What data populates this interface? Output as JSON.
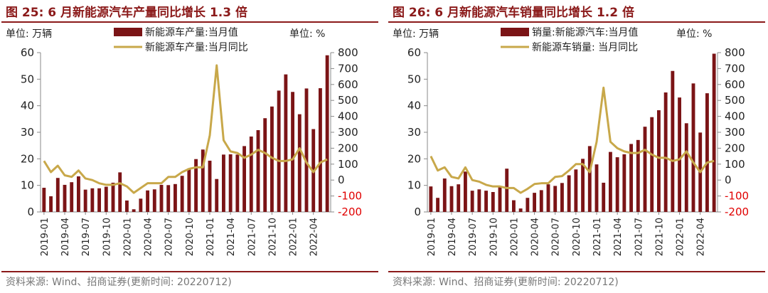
{
  "colors": {
    "accent": "#8B1A1A",
    "bar": "#7B1416",
    "line": "#C8A84A",
    "negative_tick": "#e00000"
  },
  "charts": [
    {
      "title": "图 25:  6 月新能源汽车产量同比增长 1.3 倍",
      "source": "资料来源: Wind、招商证券(更新时间: 20220712)",
      "left_unit": "单位:  万辆",
      "right_unit": "单位:  %"
    },
    {
      "title": "图 26:  6 月新能源汽车销量同比增长 1.2 倍",
      "source": "资料来源: Wind、招商证券(更新时间: 20220712)",
      "left_unit": "单位:  万辆",
      "right_unit": "单位:  %"
    }
  ],
  "chart_data": [
    {
      "type": "bar",
      "title": "图 25:  6 月新能源汽车产量同比增长 1.3 倍",
      "x": [
        "2019-01",
        "2019-02",
        "2019-03",
        "2019-04",
        "2019-05",
        "2019-06",
        "2019-07",
        "2019-08",
        "2019-09",
        "2019-10",
        "2019-11",
        "2019-12",
        "2020-01",
        "2020-02",
        "2020-03",
        "2020-04",
        "2020-05",
        "2020-06",
        "2020-07",
        "2020-08",
        "2020-09",
        "2020-10",
        "2020-11",
        "2020-12",
        "2021-01",
        "2021-02",
        "2021-03",
        "2021-04",
        "2021-05",
        "2021-06",
        "2021-07",
        "2021-08",
        "2021-09",
        "2021-10",
        "2021-11",
        "2021-12",
        "2022-01",
        "2022-02",
        "2022-03",
        "2022-04",
        "2022-05",
        "2022-06"
      ],
      "x_tick_labels": [
        "2019-01",
        "2019-04",
        "2019-07",
        "2019-10",
        "2020-01",
        "2020-04",
        "2020-07",
        "2020-10",
        "2021-01",
        "2021-04",
        "2021-07",
        "2021-10",
        "2022-01",
        "2022-04"
      ],
      "left_axis": {
        "range": [
          0,
          60
        ],
        "ticks": [
          0,
          10,
          20,
          30,
          40,
          50,
          60
        ]
      },
      "right_axis": {
        "range": [
          -200,
          800
        ],
        "ticks": [
          -200,
          -100,
          0,
          100,
          200,
          300,
          400,
          500,
          600,
          700,
          800
        ]
      },
      "series": [
        {
          "name": "新能源车产量:当月值",
          "kind": "bar",
          "axis": "left",
          "values": [
            9.1,
            5.9,
            12.8,
            10.2,
            11.2,
            13.4,
            8.4,
            8.9,
            8.9,
            9.5,
            11.0,
            14.9,
            4.3,
            1.0,
            5.0,
            8.1,
            8.5,
            10.2,
            10.1,
            10.5,
            13.6,
            16.4,
            19.9,
            23.5,
            19.3,
            12.4,
            21.6,
            21.7,
            21.6,
            24.8,
            28.4,
            30.8,
            35.3,
            39.7,
            45.7,
            51.8,
            45.2,
            36.8,
            46.5,
            31.2,
            46.6,
            59.0
          ]
        },
        {
          "name": "新能源车产量:当月同比",
          "kind": "line",
          "axis": "left_on_right",
          "values": [
            120,
            50,
            90,
            30,
            20,
            60,
            10,
            0,
            -20,
            -30,
            -30,
            -20,
            -40,
            -80,
            -50,
            -20,
            -20,
            -20,
            20,
            20,
            50,
            70,
            80,
            80,
            280,
            720,
            250,
            180,
            170,
            140,
            160,
            190,
            170,
            140,
            120,
            120,
            130,
            200,
            110,
            50,
            110,
            130
          ]
        }
      ]
    },
    {
      "type": "bar",
      "title": "图 26:  6 月新能源汽车销量同比增长 1.2 倍",
      "x": [
        "2019-01",
        "2019-02",
        "2019-03",
        "2019-04",
        "2019-05",
        "2019-06",
        "2019-07",
        "2019-08",
        "2019-09",
        "2019-10",
        "2019-11",
        "2019-12",
        "2020-01",
        "2020-02",
        "2020-03",
        "2020-04",
        "2020-05",
        "2020-06",
        "2020-07",
        "2020-08",
        "2020-09",
        "2020-10",
        "2020-11",
        "2020-12",
        "2021-01",
        "2021-02",
        "2021-03",
        "2021-04",
        "2021-05",
        "2021-06",
        "2021-07",
        "2021-08",
        "2021-09",
        "2021-10",
        "2021-11",
        "2021-12",
        "2022-01",
        "2022-02",
        "2022-03",
        "2022-04",
        "2022-05",
        "2022-06"
      ],
      "x_tick_labels": [
        "2019-01",
        "2019-04",
        "2019-07",
        "2019-10",
        "2020-01",
        "2020-04",
        "2020-07",
        "2020-10",
        "2021-01",
        "2021-04",
        "2021-07",
        "2021-10",
        "2022-01",
        "2022-04"
      ],
      "left_axis": {
        "range": [
          0,
          60
        ],
        "ticks": [
          0,
          10,
          20,
          30,
          40,
          50,
          60
        ]
      },
      "right_axis": {
        "range": [
          -200,
          800
        ],
        "ticks": [
          -200,
          -100,
          0,
          100,
          200,
          300,
          400,
          500,
          600,
          700,
          800
        ]
      },
      "series": [
        {
          "name": "销量:新能源汽车:当月值",
          "kind": "bar",
          "axis": "left",
          "values": [
            9.6,
            5.3,
            12.6,
            9.7,
            10.4,
            15.2,
            8.0,
            8.5,
            8.0,
            7.5,
            9.5,
            16.3,
            4.4,
            1.3,
            5.3,
            7.2,
            8.2,
            10.4,
            9.8,
            10.9,
            13.8,
            16.0,
            20.0,
            24.8,
            17.9,
            11.0,
            22.6,
            20.6,
            21.7,
            25.6,
            27.1,
            32.1,
            35.7,
            38.3,
            45.0,
            53.1,
            43.1,
            33.4,
            48.4,
            29.9,
            44.7,
            59.6
          ]
        },
        {
          "name": "新能源车销量:  当月同比",
          "kind": "line",
          "axis": "right",
          "values": [
            150,
            60,
            80,
            20,
            10,
            80,
            0,
            -10,
            -30,
            -40,
            -40,
            -50,
            -50,
            -80,
            -55,
            -25,
            -20,
            -20,
            20,
            25,
            60,
            100,
            100,
            50,
            240,
            580,
            240,
            200,
            180,
            170,
            170,
            190,
            160,
            140,
            140,
            120,
            130,
            180,
            110,
            50,
            110,
            120
          ]
        }
      ]
    }
  ]
}
